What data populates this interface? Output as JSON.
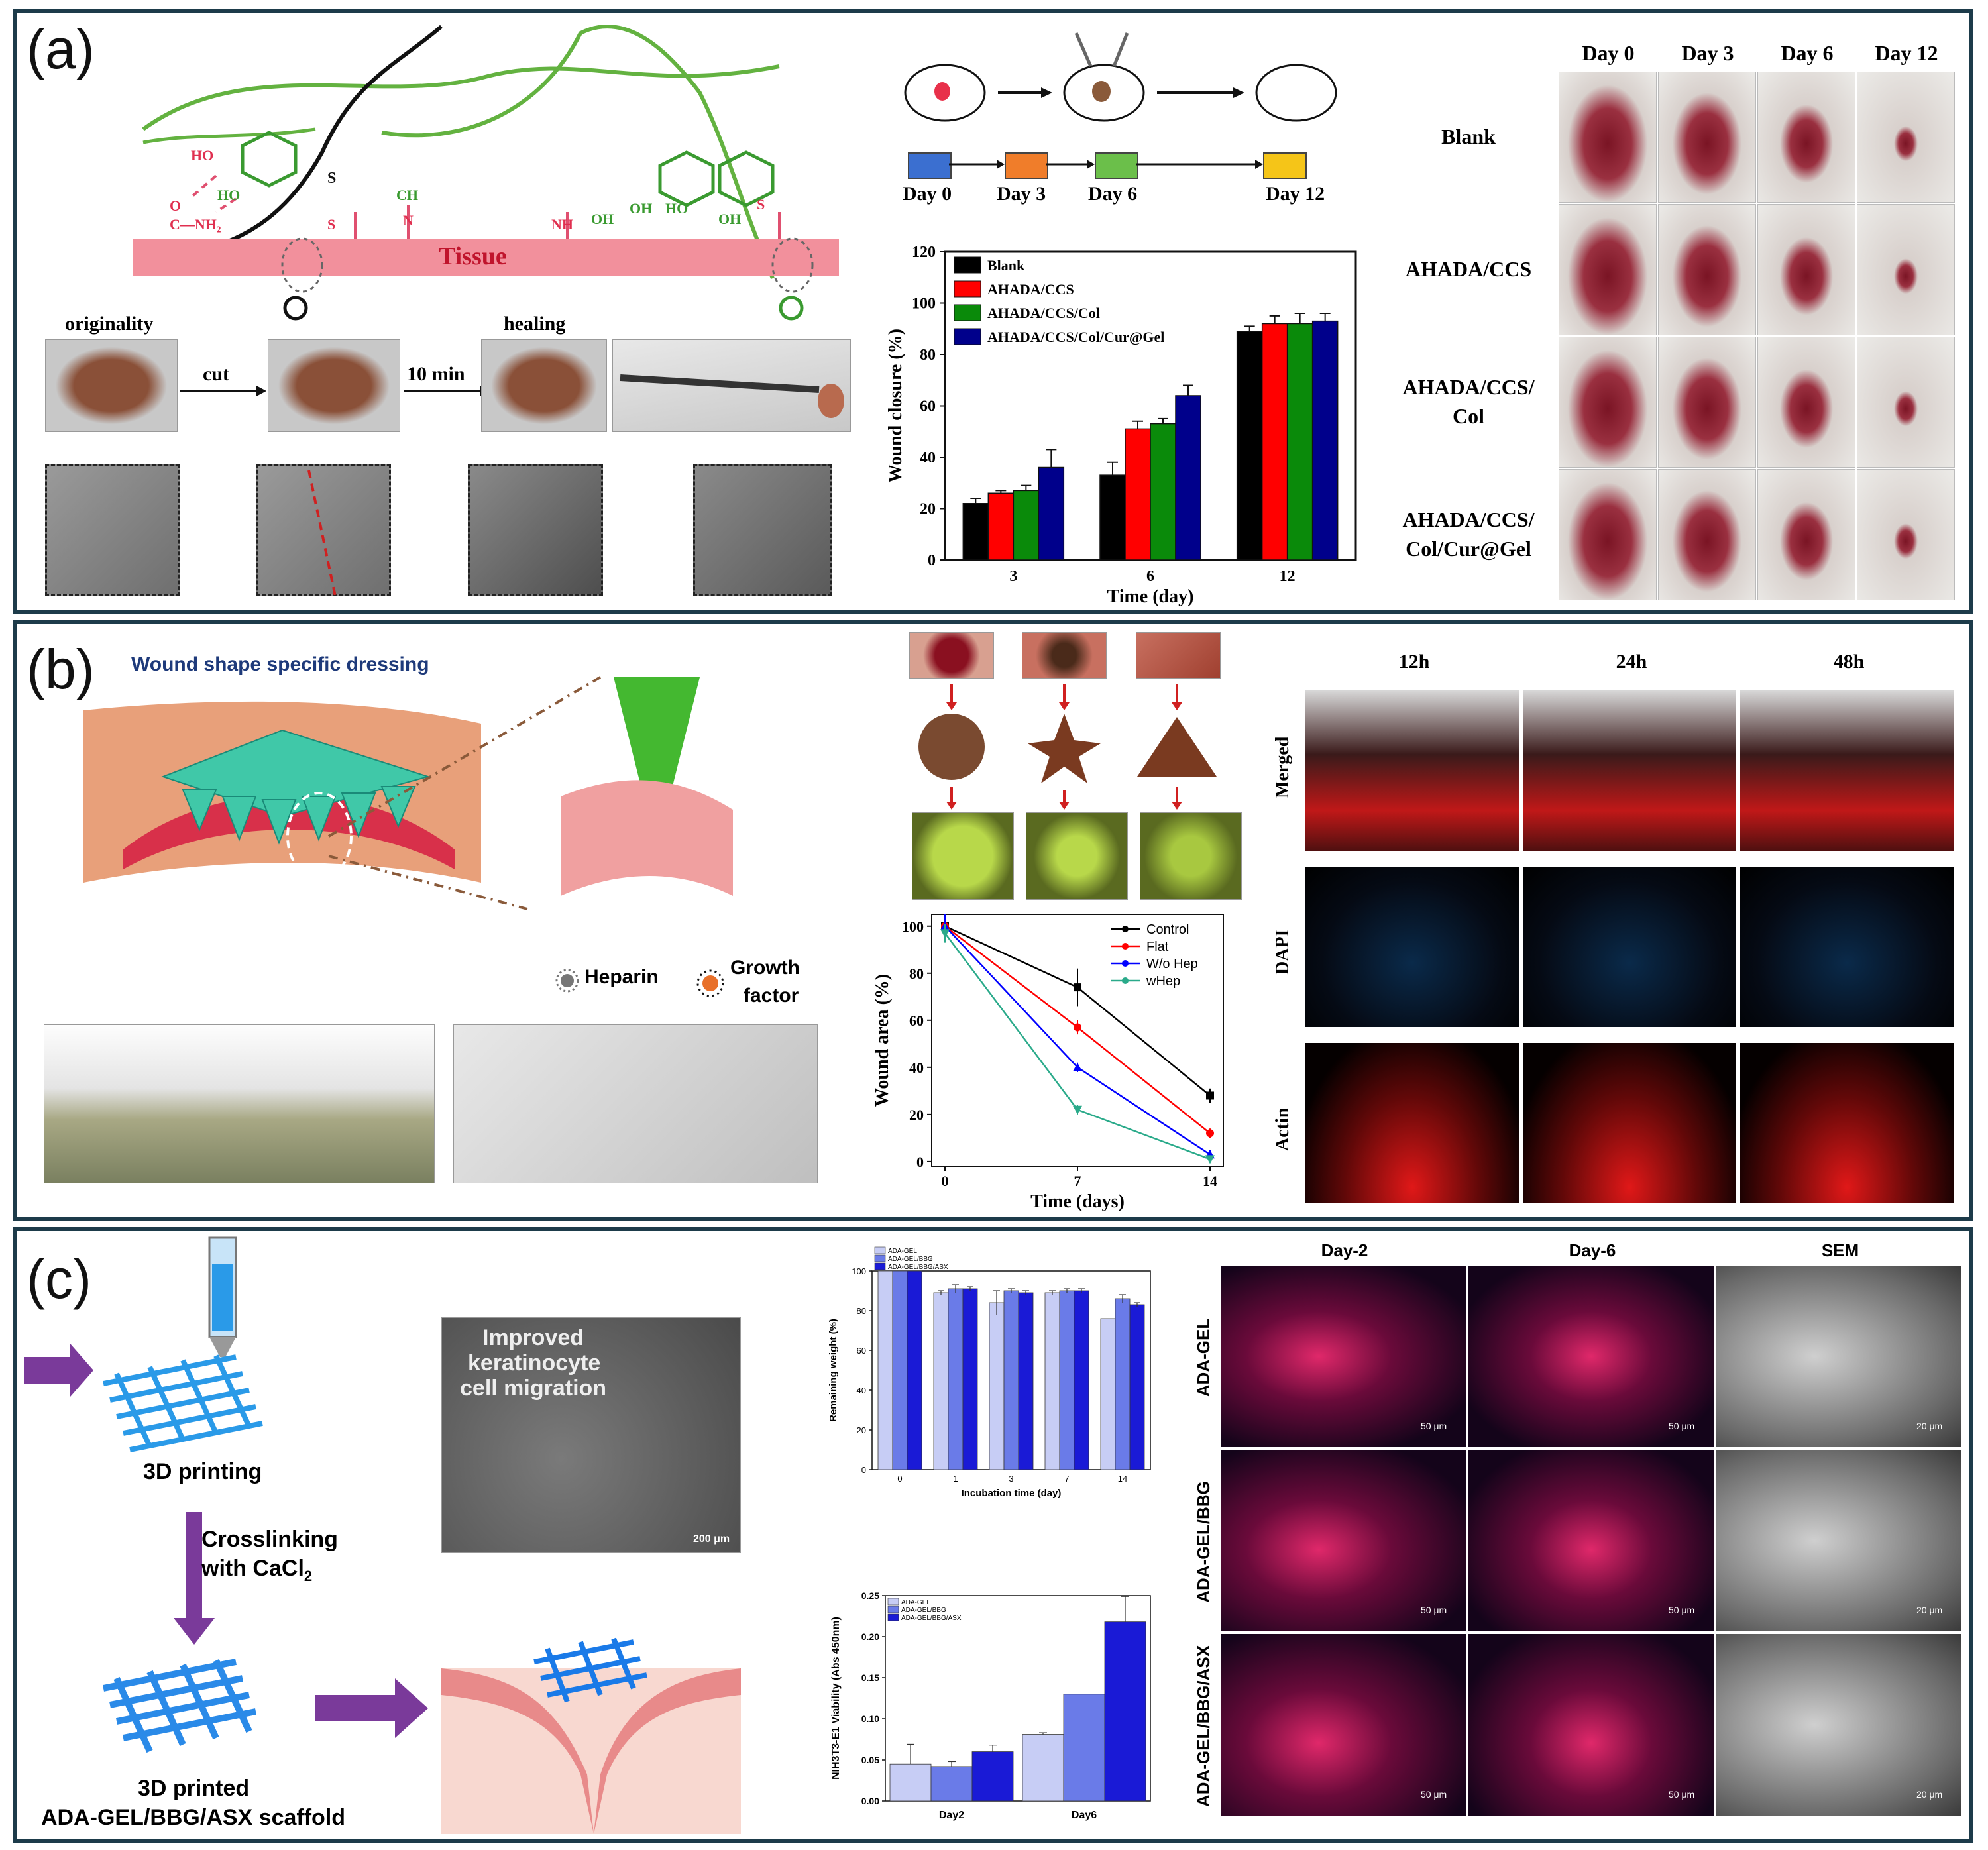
{
  "panel_a": {
    "label": "(a)",
    "tissue_label": "Tissue",
    "chem": {
      "ho1": "HO",
      "ho2": "HO",
      "o": "O",
      "nh2": "C—NH₂",
      "s1": "S",
      "s2": "S",
      "ch": "CH",
      "n": "N",
      "nh": "NH",
      "oh1": "OH",
      "oh2": "OH",
      "ho3": "HO",
      "oh3": "OH",
      "oh4": "OH",
      "s3": "S"
    },
    "steps": {
      "originality": "originality",
      "cut": "cut",
      "ten_min": "10 min",
      "healing": "healing"
    },
    "timeline": [
      "Day 0",
      "Day 3",
      "Day 6",
      "Day 12"
    ],
    "timeline_colors": [
      "#3b6fd0",
      "#f07d2a",
      "#6bbf4a",
      "#f5c518"
    ],
    "photo_cols": [
      "Day 0",
      "Day 3",
      "Day 6",
      "Day 12"
    ],
    "photo_rows": [
      "Blank",
      "AHADA/CCS",
      "AHADA/CCS/\nCol",
      "AHADA/CCS/\nCol/Cur@Gel"
    ],
    "photo_rows_l1": [
      "Blank",
      "AHADA/CCS",
      "AHADA/CCS/",
      "AHADA/CCS/"
    ],
    "photo_rows_l2": [
      "",
      "",
      "Col",
      "Col/Cur@Gel"
    ]
  },
  "panel_b": {
    "label": "(b)",
    "title": "Wound shape specific dressing",
    "legend_heparin": "Heparin",
    "legend_growth": "Growth",
    "legend_factor": "factor",
    "fluor_cols": [
      "12h",
      "24h",
      "48h"
    ],
    "fluor_rows": [
      "Merged",
      "DAPI",
      "Actin"
    ]
  },
  "panel_c": {
    "label": "(c)",
    "print_label": "3D printing",
    "crosslink_l1": "Crosslinking",
    "crosslink_l2": "with CaCl",
    "crosslink_sub": "2",
    "scaffold_l1": "3D printed",
    "scaffold_l2": "ADA-GEL/BBG/ASX scaffold",
    "micro_l1": "Improved",
    "micro_l2": "keratinocyte",
    "micro_l3": "cell migration",
    "micro_scale": "200 μm",
    "fluor_cols": [
      "Day-2",
      "Day-6",
      "SEM"
    ],
    "fluor_rows": [
      "ADA-GEL",
      "ADA-GEL/BBG",
      "ADA-GEL/BBG/ASX"
    ],
    "scale_50": "50 μm",
    "scale_20": "20 μm"
  },
  "chart_data": [
    {
      "type": "bar",
      "id": "a_wound_closure",
      "categories": [
        "3",
        "6",
        "12"
      ],
      "series": [
        {
          "name": "Blank",
          "color": "#000000",
          "values": [
            22,
            33,
            89
          ],
          "err": [
            2,
            5,
            2
          ]
        },
        {
          "name": "AHADA/CCS",
          "color": "#ff0000",
          "values": [
            26,
            51,
            92
          ],
          "err": [
            1,
            3,
            3
          ]
        },
        {
          "name": "AHADA/CCS/Col",
          "color": "#0a8a0a",
          "values": [
            27,
            53,
            92
          ],
          "err": [
            2,
            2,
            4
          ]
        },
        {
          "name": "AHADA/CCS/Col/Cur@Gel",
          "color": "#00008b",
          "values": [
            36,
            64,
            93
          ],
          "err": [
            7,
            4,
            3
          ]
        }
      ],
      "xlabel": "Time (day)",
      "ylabel": "Wound closure (%)",
      "ylim": [
        0,
        120
      ],
      "yticks": [
        0,
        20,
        40,
        60,
        80,
        100,
        120
      ],
      "legend": "top-left"
    },
    {
      "type": "line",
      "id": "b_wound_area",
      "x": [
        0,
        7,
        14
      ],
      "series": [
        {
          "name": "Control",
          "color": "#000000",
          "marker": "square",
          "values": [
            100,
            74,
            28
          ],
          "err": [
            5,
            8,
            3
          ]
        },
        {
          "name": "Flat",
          "color": "#ff0000",
          "marker": "circle",
          "values": [
            100,
            57,
            12
          ],
          "err": [
            5,
            3,
            2
          ]
        },
        {
          "name": "W/o Hep",
          "color": "#0000ff",
          "marker": "triangle",
          "values": [
            100,
            40,
            3
          ],
          "err": [
            5,
            2,
            2
          ]
        },
        {
          "name": "wHep",
          "color": "#2aaa8a",
          "marker": "tridown",
          "values": [
            97,
            22,
            1
          ],
          "err": [
            4,
            2,
            1
          ]
        }
      ],
      "xlabel": "Time (days)",
      "ylabel": "Wound area (%)",
      "ylim": [
        0,
        105
      ],
      "xticks": [
        0,
        7,
        14
      ],
      "yticks": [
        0,
        20,
        40,
        60,
        80,
        100
      ],
      "legend": "top-right"
    },
    {
      "type": "bar",
      "id": "c_remaining_weight",
      "categories": [
        "0",
        "1",
        "3",
        "7",
        "14"
      ],
      "series": [
        {
          "name": "ADA-GEL",
          "color": "#c7cdf5",
          "values": [
            100,
            89,
            84,
            89,
            76
          ],
          "err": [
            0,
            1,
            6,
            1,
            0
          ]
        },
        {
          "name": "ADA-GEL/BBG",
          "color": "#6a7be8",
          "values": [
            100,
            91,
            90,
            90,
            86
          ],
          "err": [
            0,
            2,
            1,
            1,
            2
          ]
        },
        {
          "name": "ADA-GEL/BBG/ASX",
          "color": "#1a1ad6",
          "values": [
            100,
            91,
            89,
            90,
            83
          ],
          "err": [
            0,
            1,
            1,
            1,
            1
          ]
        }
      ],
      "xlabel": "Incubation time (day)",
      "ylabel": "Remaining weight (%)",
      "ylim": [
        0,
        100
      ],
      "yticks": [
        0,
        20,
        40,
        60,
        80,
        100
      ],
      "legend": "top-left"
    },
    {
      "type": "bar",
      "id": "c_viability",
      "categories": [
        "Day2",
        "Day6"
      ],
      "series": [
        {
          "name": "ADA-GEL",
          "color": "#c7cdf5",
          "values": [
            0.045,
            0.081
          ],
          "err": [
            0.024,
            0.002
          ]
        },
        {
          "name": "ADA-GEL/BBG",
          "color": "#6a7be8",
          "values": [
            0.042,
            0.13
          ],
          "err": [
            0.006,
            0
          ]
        },
        {
          "name": "ADA-GEL/BBG/ASX",
          "color": "#1a1ad6",
          "values": [
            0.06,
            0.218
          ],
          "err": [
            0.008,
            0.031
          ]
        }
      ],
      "xlabel": "",
      "ylabel": "NIH3T3-E1 Viability (Abs 450nm)",
      "ylim": [
        0,
        0.25
      ],
      "yticks": [
        0.0,
        0.05,
        0.1,
        0.15,
        0.2,
        0.25
      ],
      "ytick_labels": [
        "0.00",
        "0.05",
        "0.10",
        "0.15",
        "0.20",
        "0.25"
      ],
      "legend": "top-left"
    }
  ]
}
